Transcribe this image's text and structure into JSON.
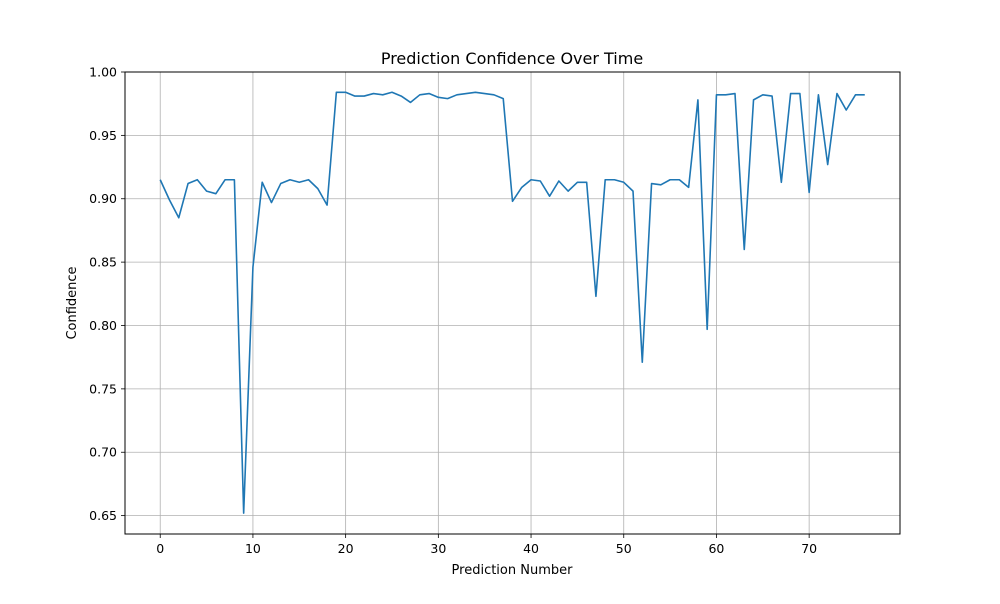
{
  "chart_data": {
    "type": "line",
    "title": "Prediction Confidence Over Time",
    "xlabel": "Prediction Number",
    "ylabel": "Confidence",
    "xlim": [
      -3.8,
      79.8
    ],
    "ylim": [
      0.6355,
      1.0
    ],
    "xticks": [
      0,
      10,
      20,
      30,
      40,
      50,
      60,
      70
    ],
    "yticks": [
      0.65,
      0.7,
      0.75,
      0.8,
      0.85,
      0.9,
      0.95,
      1.0
    ],
    "ytick_labels": [
      "0.65",
      "0.70",
      "0.75",
      "0.80",
      "0.85",
      "0.90",
      "0.95",
      "1.00"
    ],
    "grid": true,
    "series": [
      {
        "color": "#1f77b4",
        "x": [
          0,
          1,
          2,
          3,
          4,
          5,
          6,
          7,
          8,
          9,
          10,
          11,
          12,
          13,
          14,
          15,
          16,
          17,
          18,
          19,
          20,
          21,
          22,
          23,
          24,
          25,
          26,
          27,
          28,
          29,
          30,
          31,
          32,
          33,
          34,
          35,
          36,
          37,
          38,
          39,
          40,
          41,
          42,
          43,
          44,
          45,
          46,
          47,
          48,
          49,
          50,
          51,
          52,
          53,
          54,
          55,
          56,
          57,
          58,
          59,
          60,
          61,
          62,
          63,
          64,
          65,
          66,
          67,
          68,
          69,
          70,
          71,
          72,
          73,
          74,
          75,
          76
        ],
        "y": [
          0.915,
          0.899,
          0.885,
          0.912,
          0.915,
          0.906,
          0.904,
          0.915,
          0.915,
          0.652,
          0.846,
          0.913,
          0.897,
          0.912,
          0.915,
          0.913,
          0.915,
          0.908,
          0.895,
          0.984,
          0.984,
          0.981,
          0.981,
          0.983,
          0.982,
          0.984,
          0.981,
          0.976,
          0.982,
          0.983,
          0.98,
          0.979,
          0.982,
          0.983,
          0.984,
          0.983,
          0.982,
          0.979,
          0.898,
          0.909,
          0.915,
          0.914,
          0.902,
          0.914,
          0.906,
          0.913,
          0.913,
          0.823,
          0.915,
          0.915,
          0.913,
          0.906,
          0.771,
          0.912,
          0.911,
          0.915,
          0.915,
          0.909,
          0.978,
          0.797,
          0.982,
          0.982,
          0.983,
          0.86,
          0.978,
          0.982,
          0.981,
          0.913,
          0.983,
          0.983,
          0.905,
          0.982,
          0.927,
          0.983,
          0.97,
          0.982,
          0.982
        ]
      }
    ]
  }
}
